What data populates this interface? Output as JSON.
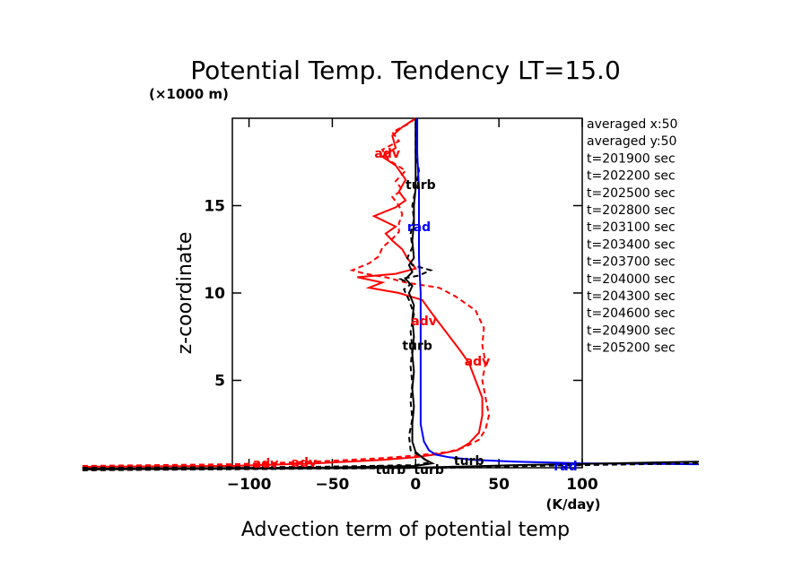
{
  "chart_data": {
    "type": "line",
    "title": "Potential Temp. Tendency LT=15.0",
    "xlabel": "Advection term of potential temp",
    "xunit": "(K/day)",
    "ylabel": "z-coordinate",
    "yunit": "(×1000 m)",
    "xlim": [
      -110,
      100
    ],
    "ylim": [
      0,
      20
    ],
    "xticks": [
      -100,
      -50,
      0,
      50,
      100
    ],
    "xtick_labels": [
      "−100",
      "−50",
      "0",
      "50",
      "100"
    ],
    "yticks": [
      5,
      10,
      15
    ],
    "ytick_labels": [
      "5",
      "10",
      "15"
    ],
    "legend_text": [
      "averaged  x:50",
      "averaged  y:50",
      "t=201900 sec",
      "t=202200 sec",
      "t=202500 sec",
      "t=202800 sec",
      "t=203100 sec",
      "t=203400 sec",
      "t=203700 sec",
      "t=204000 sec",
      "t=204300 sec",
      "t=204600 sec",
      "t=204900 sec",
      "t=205200 sec"
    ],
    "annotations": [
      {
        "text": "adv",
        "x": -90,
        "y": 0.25,
        "color": "#ff0000"
      },
      {
        "text": "adv",
        "x": -67,
        "y": 0.3,
        "color": "#ff0000"
      },
      {
        "text": "adv",
        "x": -17,
        "y": 18.0,
        "color": "#ff0000"
      },
      {
        "text": "adv",
        "x": 5,
        "y": 8.4,
        "color": "#ff0000"
      },
      {
        "text": "adv",
        "x": 37,
        "y": 6.1,
        "color": "#ff0000"
      },
      {
        "text": "turb",
        "x": -15,
        "y": -0.1,
        "color": "#000000"
      },
      {
        "text": "turb",
        "x": 8,
        "y": -0.1,
        "color": "#000000"
      },
      {
        "text": "turb",
        "x": 3,
        "y": 16.2,
        "color": "#000000"
      },
      {
        "text": "turb",
        "x": 1,
        "y": 7.0,
        "color": "#000000"
      },
      {
        "text": "turb",
        "x": 32,
        "y": 0.4,
        "color": "#000000"
      },
      {
        "text": "rad",
        "x": 2,
        "y": 13.8,
        "color": "#0000ff"
      },
      {
        "text": "rad",
        "x": 90,
        "y": 0.1,
        "color": "#0000ff"
      }
    ],
    "series": [
      {
        "color": "#ff0000",
        "dash": "solid",
        "points": [
          [
            -200,
            0.05
          ],
          [
            -110,
            0.1
          ],
          [
            -60,
            0.25
          ],
          [
            -20,
            0.45
          ],
          [
            0,
            0.6
          ],
          [
            15,
            0.8
          ],
          [
            25,
            1.0
          ],
          [
            32,
            1.4
          ],
          [
            38,
            2.0
          ],
          [
            40,
            3.0
          ],
          [
            40,
            4.0
          ],
          [
            36,
            5.0
          ],
          [
            32,
            6.0
          ],
          [
            26,
            6.8
          ],
          [
            18,
            7.8
          ],
          [
            10,
            8.8
          ],
          [
            4,
            9.6
          ],
          [
            -10,
            10.0
          ],
          [
            -28,
            10.3
          ],
          [
            -20,
            10.6
          ],
          [
            -35,
            10.9
          ],
          [
            -12,
            11.1
          ],
          [
            0,
            11.4
          ],
          [
            -5,
            12.0
          ],
          [
            -8,
            12.5
          ],
          [
            -14,
            13.0
          ],
          [
            -18,
            13.4
          ],
          [
            -12,
            13.8
          ],
          [
            -25,
            14.4
          ],
          [
            -12,
            14.9
          ],
          [
            -6,
            15.3
          ],
          [
            -10,
            15.8
          ],
          [
            -6,
            16.5
          ],
          [
            -12,
            17.3
          ],
          [
            -20,
            17.8
          ],
          [
            -12,
            18.3
          ],
          [
            -14,
            19.0
          ],
          [
            -8,
            19.5
          ],
          [
            0,
            20
          ]
        ]
      },
      {
        "color": "#ff0000",
        "dash": "dashed",
        "points": [
          [
            -200,
            0.1
          ],
          [
            -110,
            0.2
          ],
          [
            -60,
            0.35
          ],
          [
            -20,
            0.55
          ],
          [
            0,
            0.7
          ],
          [
            20,
            0.9
          ],
          [
            30,
            1.2
          ],
          [
            38,
            1.6
          ],
          [
            42,
            2.2
          ],
          [
            44,
            3.0
          ],
          [
            42,
            4.0
          ],
          [
            40,
            5.0
          ],
          [
            42,
            6.0
          ],
          [
            40,
            7.0
          ],
          [
            41,
            8.0
          ],
          [
            36,
            9.0
          ],
          [
            24,
            9.8
          ],
          [
            14,
            10.3
          ],
          [
            -6,
            10.6
          ],
          [
            -18,
            10.9
          ],
          [
            -30,
            11.1
          ],
          [
            -38,
            11.3
          ],
          [
            -28,
            11.7
          ],
          [
            -22,
            12.1
          ],
          [
            -20,
            12.6
          ],
          [
            -14,
            13.1
          ],
          [
            -10,
            13.5
          ],
          [
            -10,
            14.0
          ],
          [
            -8,
            14.5
          ],
          [
            -10,
            15.0
          ],
          [
            -14,
            15.5
          ],
          [
            -8,
            15.9
          ],
          [
            -12,
            16.4
          ],
          [
            -6,
            17.0
          ],
          [
            -16,
            17.6
          ],
          [
            -20,
            18.2
          ],
          [
            -10,
            18.7
          ],
          [
            -14,
            19.2
          ],
          [
            -4,
            19.7
          ],
          [
            0,
            20
          ]
        ]
      },
      {
        "color": "#000000",
        "dash": "solid",
        "points": [
          [
            -200,
            -0.05
          ],
          [
            -60,
            0.0
          ],
          [
            0,
            0.1
          ],
          [
            10,
            0.25
          ],
          [
            5,
            0.5
          ],
          [
            0,
            0.9
          ],
          [
            -2,
            1.5
          ],
          [
            -2,
            2.5
          ],
          [
            -1,
            3.5
          ],
          [
            -2,
            4.5
          ],
          [
            -1,
            5.5
          ],
          [
            -2,
            6.5
          ],
          [
            -1,
            7.5
          ],
          [
            -2,
            8.5
          ],
          [
            -1,
            9.3
          ],
          [
            -4,
            10.0
          ],
          [
            -2,
            10.4
          ],
          [
            -6,
            10.8
          ],
          [
            -2,
            11.2
          ],
          [
            -4,
            11.6
          ],
          [
            -1,
            12.0
          ],
          [
            -2,
            13.0
          ],
          [
            -1,
            14.0
          ],
          [
            -1,
            15.0
          ],
          [
            0,
            16.0
          ],
          [
            0,
            17.0
          ],
          [
            0,
            18.0
          ],
          [
            0,
            19.0
          ],
          [
            0,
            20
          ]
        ]
      },
      {
        "color": "#000000",
        "dash": "dashed",
        "points": [
          [
            -200,
            0.0
          ],
          [
            -60,
            0.05
          ],
          [
            0,
            0.15
          ],
          [
            8,
            0.3
          ],
          [
            4,
            0.6
          ],
          [
            -3,
            1.0
          ],
          [
            -4,
            1.8
          ],
          [
            -2,
            2.8
          ],
          [
            -3,
            3.8
          ],
          [
            -2,
            4.8
          ],
          [
            -3,
            5.8
          ],
          [
            -2,
            6.8
          ],
          [
            -3,
            7.8
          ],
          [
            -1,
            8.8
          ],
          [
            -4,
            9.6
          ],
          [
            -7,
            10.2
          ],
          [
            -3,
            10.5
          ],
          [
            -9,
            10.8
          ],
          [
            2,
            11.0
          ],
          [
            9,
            11.3
          ],
          [
            -2,
            11.6
          ],
          [
            -5,
            12.0
          ],
          [
            -2,
            12.6
          ],
          [
            -3,
            13.4
          ],
          [
            -1,
            14.2
          ],
          [
            -2,
            15.0
          ],
          [
            0,
            16.0
          ],
          [
            2,
            17.0
          ],
          [
            0,
            18.0
          ],
          [
            0,
            19.0
          ],
          [
            0,
            20
          ]
        ]
      },
      {
        "color": "#0000ff",
        "dash": "solid",
        "points": [
          [
            170,
            0.2
          ],
          [
            100,
            0.25
          ],
          [
            60,
            0.35
          ],
          [
            35,
            0.45
          ],
          [
            20,
            0.6
          ],
          [
            12,
            0.75
          ],
          [
            8,
            1.0
          ],
          [
            5,
            1.5
          ],
          [
            3,
            2.5
          ],
          [
            3,
            5.0
          ],
          [
            3,
            8.0
          ],
          [
            3,
            10.0
          ],
          [
            2,
            12.0
          ],
          [
            2,
            14.0
          ],
          [
            2,
            16.0
          ],
          [
            1,
            18.0
          ],
          [
            1,
            20
          ]
        ]
      },
      {
        "color": "#000000",
        "dash": "solid",
        "points": [
          [
            -200,
            -0.1
          ],
          [
            0,
            0.0
          ],
          [
            60,
            0.15
          ],
          [
            170,
            0.35
          ]
        ]
      },
      {
        "color": "#000000",
        "dash": "dashed",
        "points": [
          [
            -200,
            -0.15
          ],
          [
            20,
            0.0
          ],
          [
            70,
            0.1
          ],
          [
            170,
            0.25
          ]
        ]
      }
    ]
  }
}
